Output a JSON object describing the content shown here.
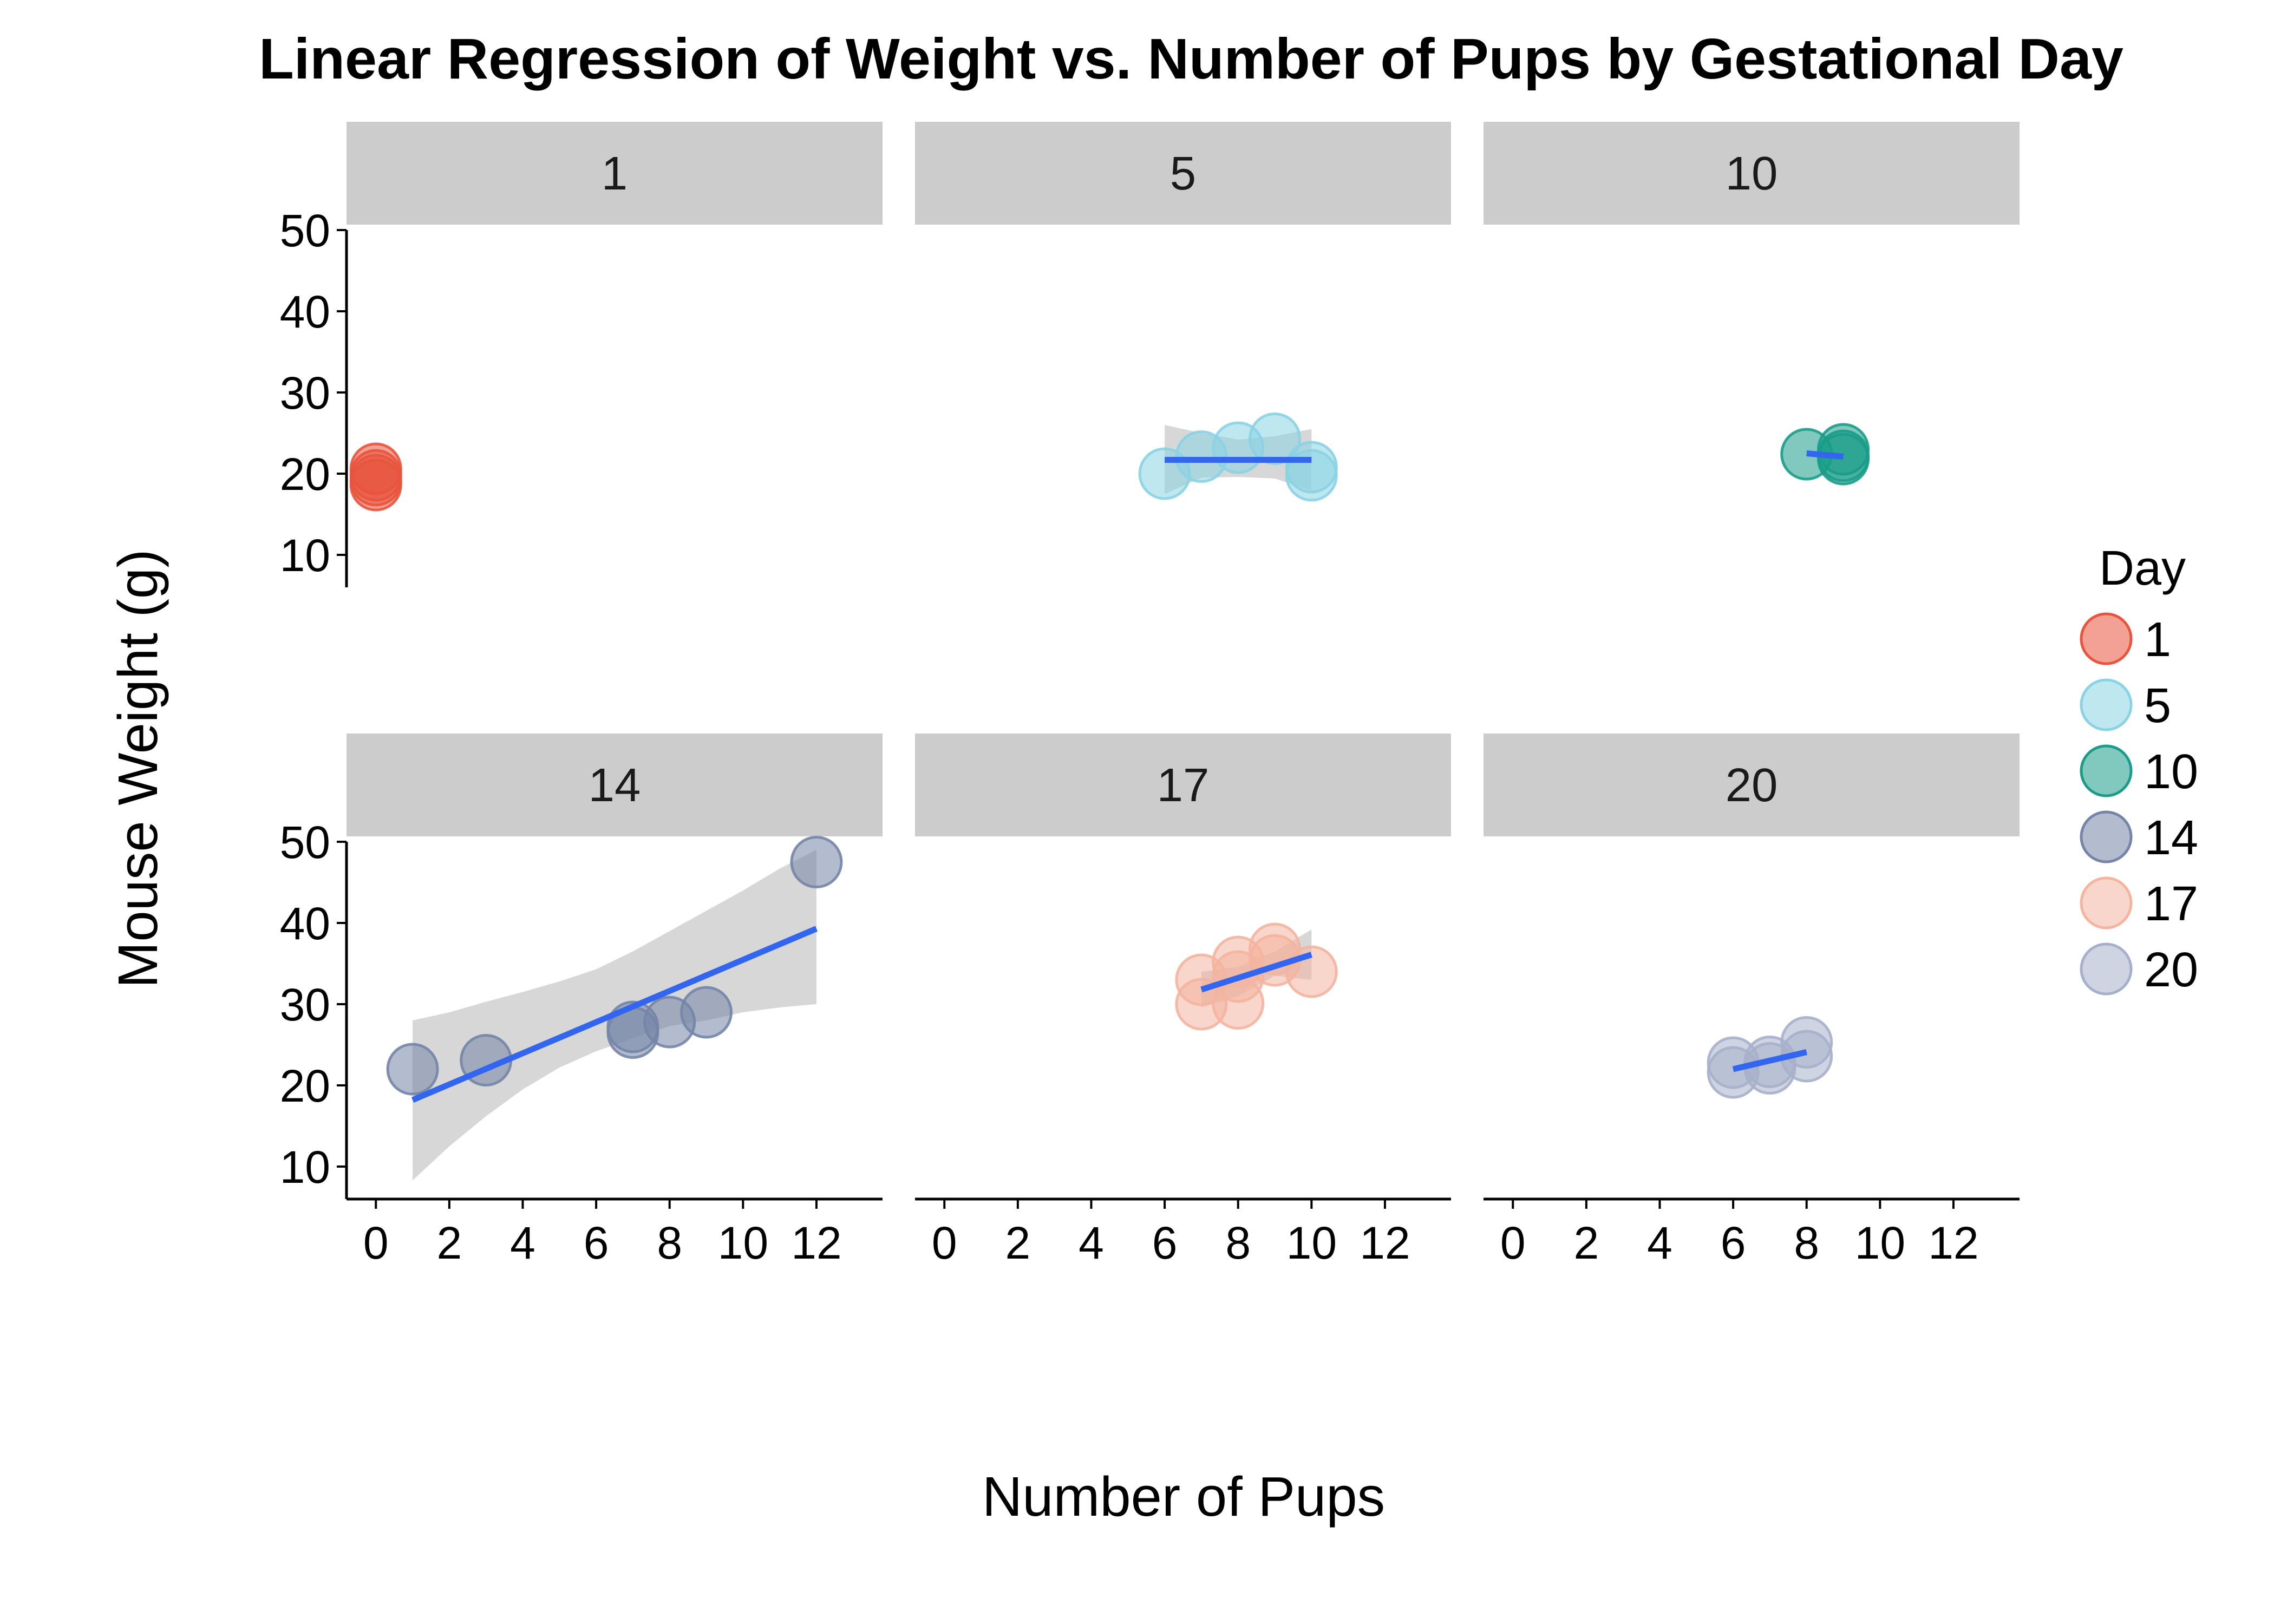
{
  "chart_data": {
    "type": "scatter",
    "title": "Linear Regression of Weight vs. Number of Pups by Gestational Day",
    "xlabel": "Number of Pups",
    "ylabel": "Mouse Weight (g)",
    "xlim": [
      -0.8,
      13.8
    ],
    "ylim": [
      6,
      50
    ],
    "x_ticks": [
      0,
      2,
      4,
      6,
      8,
      10,
      12
    ],
    "y_ticks": [
      10,
      20,
      30,
      40,
      50
    ],
    "facet_rows": 2,
    "facet_cols": 3,
    "legend": {
      "title": "Day",
      "position": "right"
    },
    "grid": false,
    "facets": [
      {
        "label": "1",
        "color": "#e8543d",
        "points": [
          [
            0,
            20.6
          ],
          [
            0,
            19.8
          ],
          [
            0,
            19.2
          ],
          [
            0,
            18.6
          ]
        ],
        "fit": null,
        "band": null
      },
      {
        "label": "5",
        "color": "#8ad3e4",
        "points": [
          [
            6,
            20.0
          ],
          [
            7,
            22.1
          ],
          [
            8,
            23.2
          ],
          [
            9,
            24.3
          ],
          [
            10,
            20.8
          ],
          [
            10,
            19.8
          ]
        ],
        "fit": [
          [
            6,
            21.7
          ],
          [
            10,
            21.7
          ]
        ],
        "band": [
          [
            6,
            26.0,
            17.5
          ],
          [
            7,
            25.0,
            19.5
          ],
          [
            8,
            24.2,
            19.6
          ],
          [
            9,
            24.6,
            19.4
          ],
          [
            10,
            25.5,
            17.9
          ]
        ]
      },
      {
        "label": "10",
        "color": "#1a9c89",
        "points": [
          [
            8,
            22.4
          ],
          [
            9,
            23.0
          ],
          [
            9,
            22.2
          ],
          [
            9,
            21.8
          ]
        ],
        "fit": [
          [
            8,
            22.5
          ],
          [
            9,
            22.1
          ]
        ],
        "band": null
      },
      {
        "label": "14",
        "color": "#7485a7",
        "points": [
          [
            1,
            22.0
          ],
          [
            3,
            23.1
          ],
          [
            7,
            27.2
          ],
          [
            7,
            26.5
          ],
          [
            8,
            27.8
          ],
          [
            9,
            29.0
          ],
          [
            12,
            47.5
          ]
        ],
        "fit": [
          [
            1,
            18.2
          ],
          [
            12,
            39.3
          ]
        ],
        "band": [
          [
            1,
            28.0,
            8.3
          ],
          [
            2,
            29.0,
            12.5
          ],
          [
            3,
            30.3,
            16.2
          ],
          [
            4,
            31.5,
            19.5
          ],
          [
            5,
            32.8,
            22.2
          ],
          [
            6,
            34.3,
            24.2
          ],
          [
            7,
            36.5,
            25.8
          ],
          [
            8,
            39.0,
            27.3
          ],
          [
            9,
            41.5,
            28.0
          ],
          [
            10,
            44.0,
            29.0
          ],
          [
            11,
            46.7,
            29.6
          ],
          [
            12,
            49.0,
            30.0
          ]
        ]
      },
      {
        "label": "17",
        "color": "#f4b4a0",
        "points": [
          [
            7,
            33.0
          ],
          [
            7,
            30.0
          ],
          [
            8,
            35.2
          ],
          [
            8,
            33.4
          ],
          [
            8,
            30.1
          ],
          [
            9,
            36.8
          ],
          [
            9,
            35.4
          ],
          [
            10,
            34.0
          ]
        ],
        "fit": [
          [
            7,
            31.8
          ],
          [
            10,
            36.1
          ]
        ],
        "band": [
          [
            7,
            34.0,
            29.6
          ],
          [
            8,
            34.6,
            31.0
          ],
          [
            9,
            36.5,
            33.5
          ],
          [
            10,
            39.2,
            33.0
          ]
        ]
      },
      {
        "label": "20",
        "color": "#a7b0cb",
        "points": [
          [
            6,
            22.8
          ],
          [
            6,
            21.6
          ],
          [
            7,
            22.9
          ],
          [
            7,
            22.1
          ],
          [
            8,
            25.3
          ],
          [
            8,
            23.6
          ]
        ],
        "fit": [
          [
            6,
            22.0
          ],
          [
            8,
            24.1
          ]
        ],
        "band": null
      }
    ],
    "fit_color": "#3366ee",
    "band_color": "#d3d3d3",
    "strip_color": "#cccccc"
  }
}
